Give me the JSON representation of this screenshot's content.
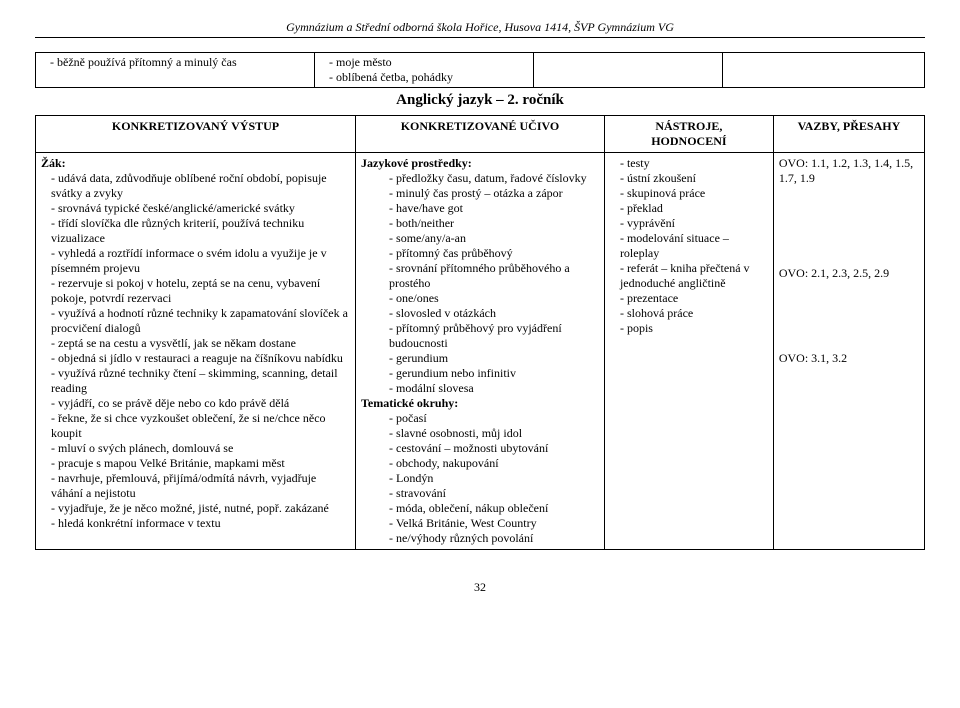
{
  "header": "Gymnázium a Střední odborná škola Hořice, Husova 1414, ŠVP Gymnázium VG",
  "row1": {
    "a": "běžně používá přítomný a minulý čas",
    "b1": "moje město",
    "b2": "oblíbená četba, pohádky"
  },
  "title2": "Anglický jazyk – 2. ročník",
  "thead": {
    "c1": "KONKRETIZOVANÝ VÝSTUP",
    "c2": "KONKRETIZOVANÉ UČIVO",
    "c3a": "NÁSTROJE,",
    "c3b": "HODNOCENÍ",
    "c4": "VAZBY, PŘESAHY"
  },
  "col1": {
    "lead": "Žák:",
    "items": [
      "udává data, zdůvodňuje oblíbené roční období, popisuje svátky a zvyky",
      "srovnává typické české/anglické/americké svátky",
      "třídí slovíčka dle různých kriterií, používá techniku vizualizace",
      "vyhledá a roztřídí informace o svém idolu a využije je v písemném projevu",
      "rezervuje si pokoj v hotelu, zeptá se na cenu, vybavení pokoje, potvrdí rezervaci",
      "využívá a hodnotí různé techniky k zapamatování slovíček a procvičení dialogů",
      "zeptá se na cestu a vysvětlí, jak se někam dostane",
      "objedná si jídlo v restauraci a reaguje na číšníkovu nabídku",
      "využívá různé techniky čtení – skimming, scanning, detail reading",
      "vyjádří, co se právě děje nebo co kdo právě dělá",
      "řekne, že si chce vyzkoušet oblečení, že si ne/chce něco koupit",
      "mluví o svých plánech, domlouvá se",
      "pracuje s mapou Velké Británie, mapkami měst",
      "navrhuje, přemlouvá, přijímá/odmítá návrh, vyjadřuje váhání a nejistotu",
      "vyjadřuje, že je něco možné, jisté, nutné, popř. zakázané",
      "hledá konkrétní informace v textu"
    ]
  },
  "col2": {
    "h1": "Jazykové prostředky:",
    "g1": [
      "předložky času, datum, řadové číslovky",
      "minulý čas prostý – otázka a zápor",
      "have/have got",
      "both/neither",
      "some/any/a-an",
      "přítomný čas průběhový",
      "srovnání přítomného průběhového a prostého",
      "one/ones",
      "slovosled v otázkách",
      "přítomný průběhový pro vyjádření budoucnosti",
      "gerundium",
      "gerundium nebo infinitiv",
      "modální slovesa"
    ],
    "h2": "Tematické okruhy:",
    "g2": [
      "počasí",
      "slavné osobnosti, můj idol",
      "cestování – možnosti ubytování",
      "obchody, nakupování",
      "Londýn",
      "stravování",
      "móda, oblečení, nákup oblečení",
      "Velká Británie, West Country",
      "ne/výhody různých povolání"
    ]
  },
  "col3": {
    "items": [
      "testy",
      "ústní zkoušení",
      "skupinová práce",
      "překlad",
      "vyprávění",
      "modelování situace – roleplay",
      "referát – kniha přečtená v jednoduché angličtině",
      "prezentace",
      "slohová práce",
      "popis"
    ]
  },
  "col4": {
    "l1": "OVO: 1.1, 1.2, 1.3, 1.4, 1.5, 1.7, 1.9",
    "l2": "OVO: 2.1, 2.3, 2.5, 2.9",
    "l3": "OVO: 3.1, 3.2"
  },
  "pagenum": "32"
}
